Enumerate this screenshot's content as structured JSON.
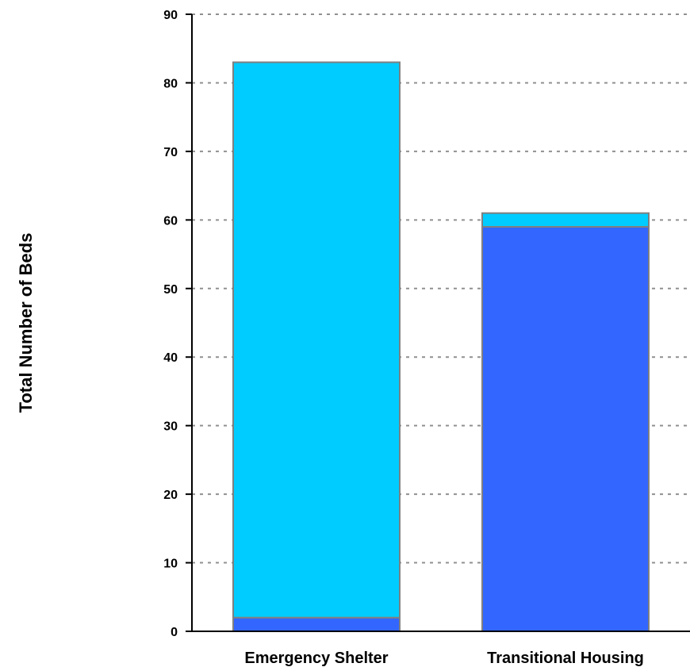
{
  "chart_data": {
    "type": "bar",
    "stacked": true,
    "title": "",
    "xlabel": "",
    "ylabel": "Total Number of Beds",
    "categories": [
      "Emergency Shelter",
      "Transitional Housing"
    ],
    "series": [
      {
        "values": [
          2,
          59
        ],
        "color": "#3366ff"
      },
      {
        "values": [
          81,
          2
        ],
        "color": "#00ccff"
      }
    ],
    "ylim": [
      0,
      90
    ],
    "yticks": [
      0,
      10,
      20,
      30,
      40,
      50,
      60,
      70,
      80,
      90
    ],
    "grid": true,
    "legend": "none"
  }
}
